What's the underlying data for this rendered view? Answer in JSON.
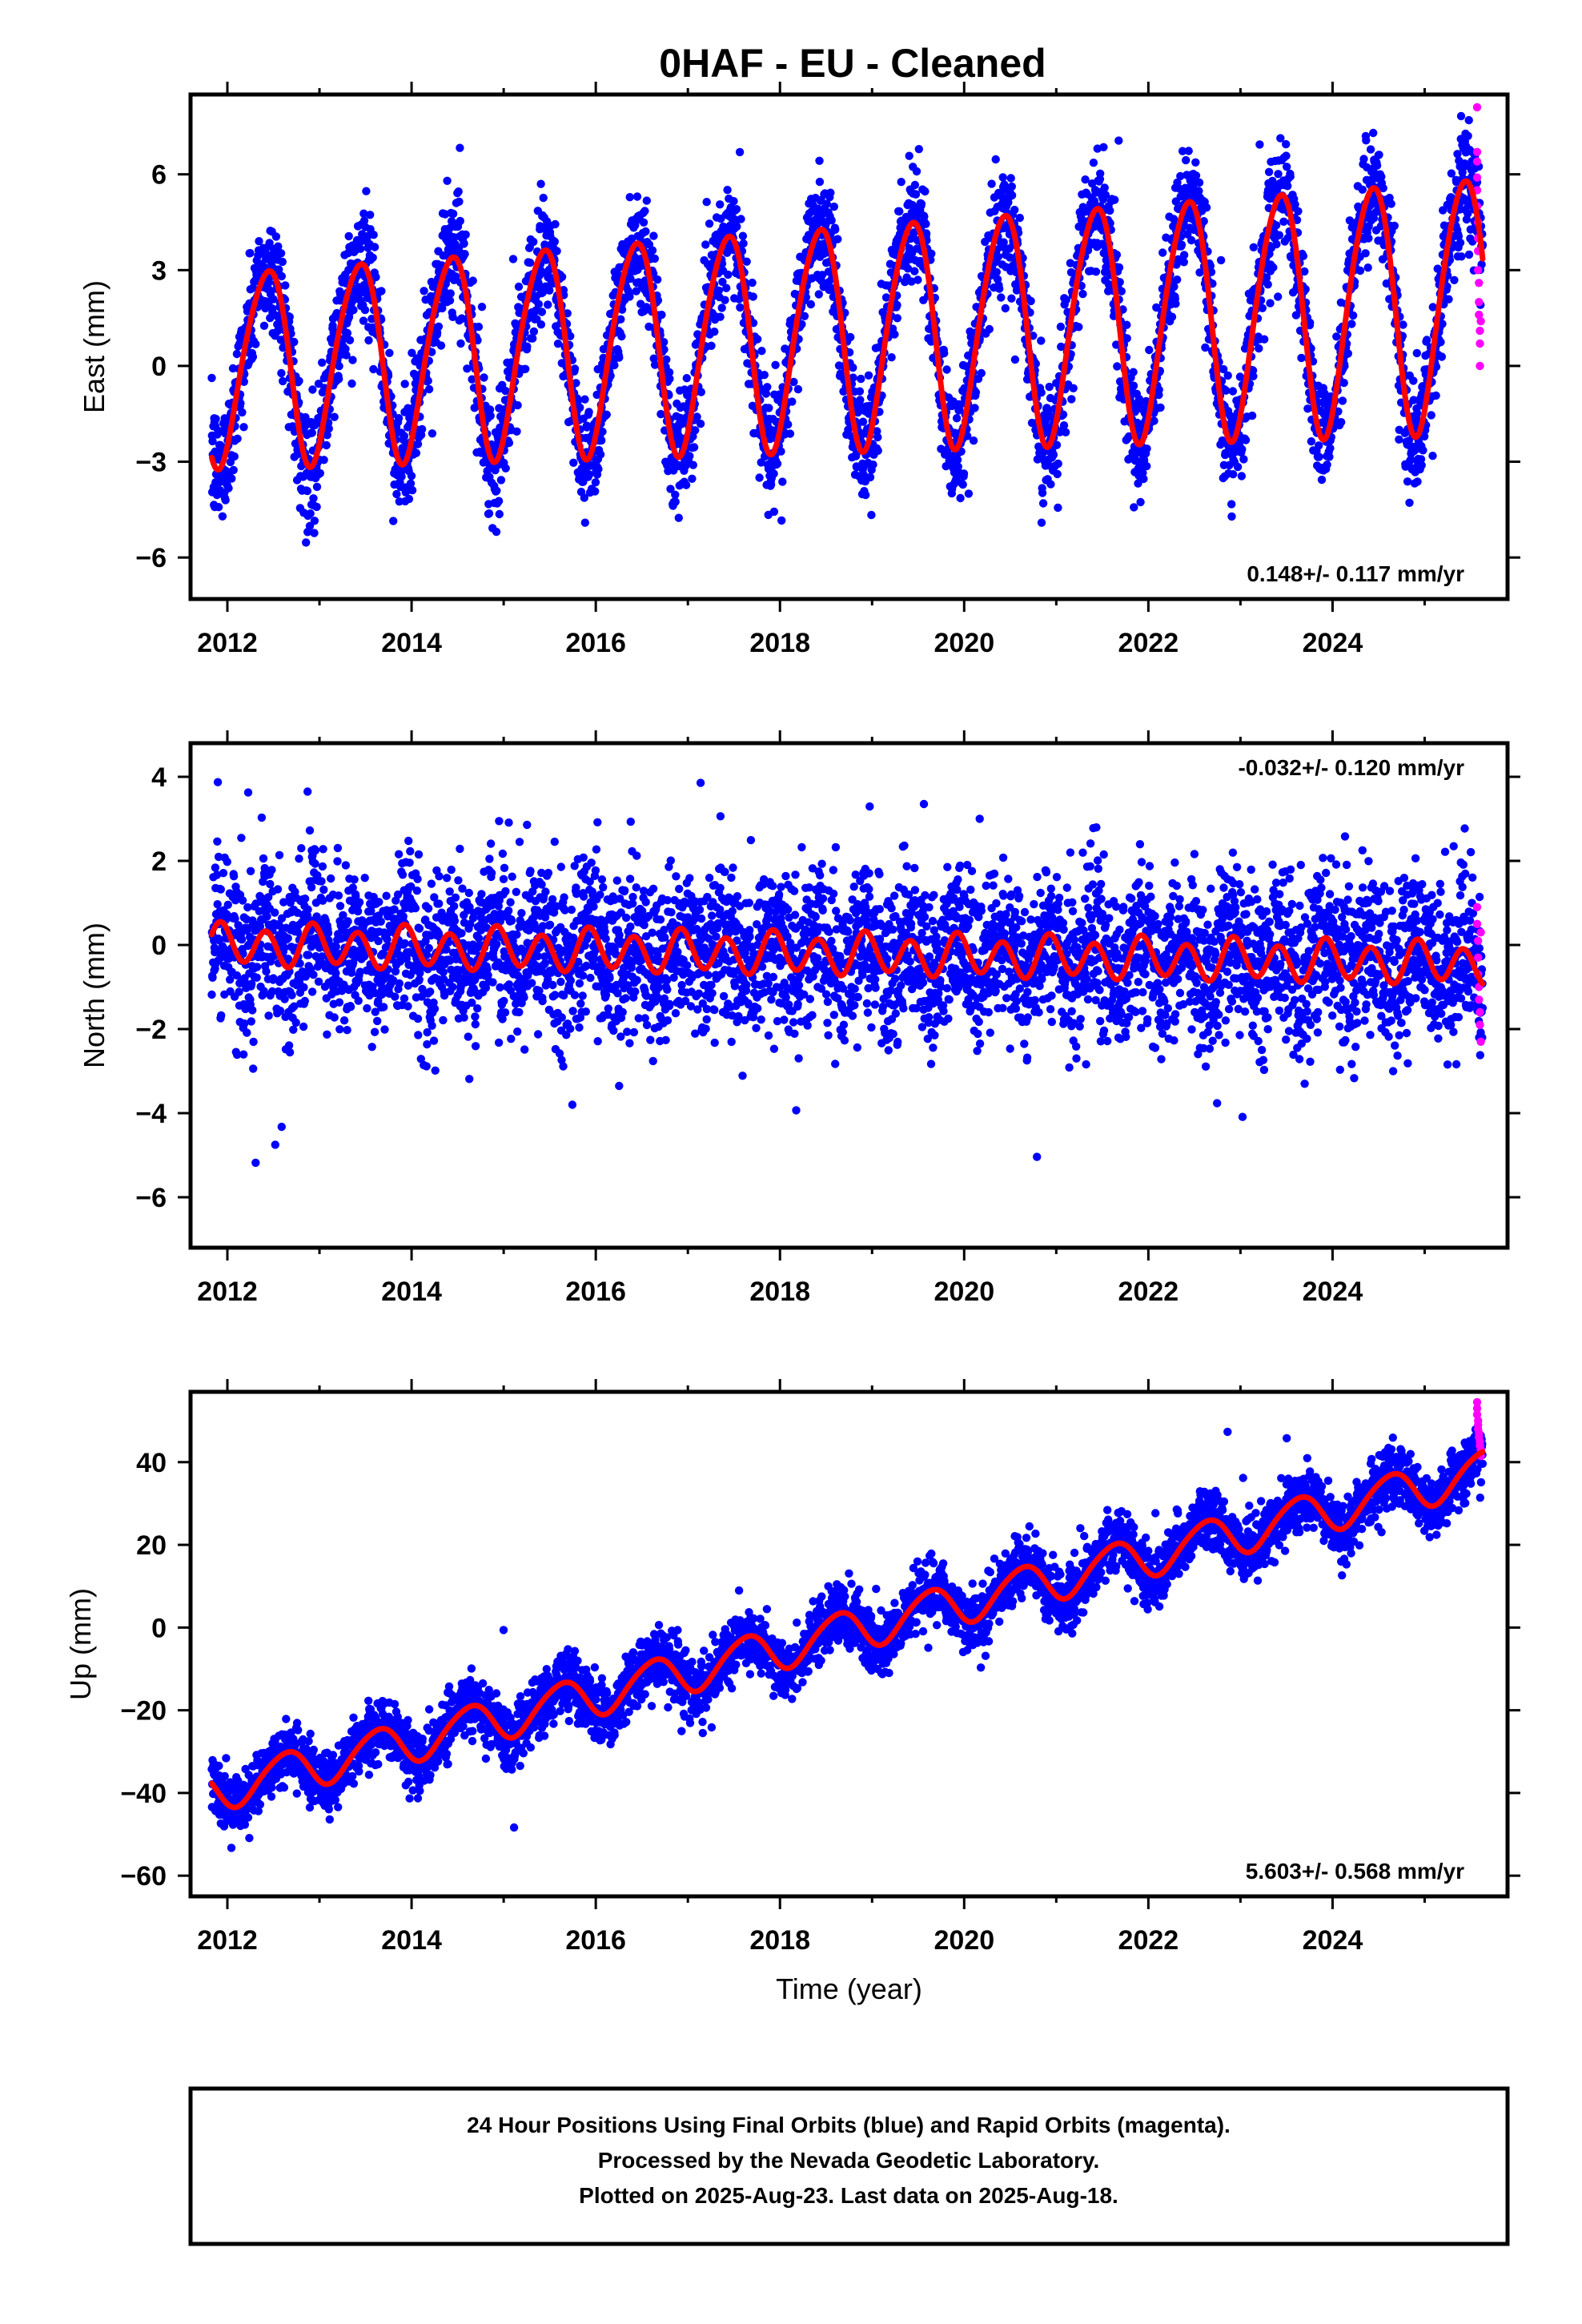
{
  "title": "0HAF  - EU - Cleaned",
  "colors": {
    "final": "#0000ff",
    "rapid": "#ff00ff",
    "model": "#ff0000",
    "frame": "#000000"
  },
  "footer": {
    "line1": "24 Hour Positions Using Final Orbits (blue) and Rapid Orbits (magenta).",
    "line2": "Processed by the Nevada Geodetic Laboratory.",
    "line3": "Plotted on 2025-Aug-23. Last data on 2025-Aug-18."
  },
  "chart_data": [
    {
      "type": "scatter",
      "name": "east",
      "ylabel": "East (mm)",
      "xlabel": "",
      "xlim": [
        2011.6,
        2025.9
      ],
      "ylim": [
        -7.3,
        8.5
      ],
      "xticks": [
        2012,
        2014,
        2016,
        2018,
        2020,
        2022,
        2024
      ],
      "yticks": [
        -6,
        -3,
        0,
        3,
        6
      ],
      "ytick_labels": [
        "−6",
        "−3",
        "0",
        "3",
        "6"
      ],
      "rate": "0.148+/- 0.117 mm/yr",
      "rate_position": "bottom-right",
      "model": {
        "start": 2011.83,
        "end": 2025.63,
        "offset": 0.0,
        "trend_mm_per_yr": 0.148,
        "annual_amp": 3.0,
        "annual_amp_growth": 0.07,
        "annual_phase_peak": 0.42,
        "semiannual_amp": 0.35,
        "semiannual_phase_peak": 0.1,
        "scatter_sd": 0.9,
        "point_count": 4600
      },
      "rapid_points": {
        "x": [
          2025.57,
          2025.57,
          2025.57,
          2025.57,
          2025.57,
          2025.57,
          2025.58,
          2025.58,
          2025.58,
          2025.58,
          2025.59,
          2025.59,
          2025.59,
          2025.6,
          2025.6,
          2025.6,
          2025.61
        ],
        "y": [
          8.1,
          6.7,
          6.4,
          5.9,
          5.5,
          5.0,
          4.5,
          4.0,
          3.6,
          3.0,
          2.6,
          2.0,
          1.6,
          1.1,
          0.7,
          0.0,
          1.4
        ]
      }
    },
    {
      "type": "scatter",
      "name": "north",
      "ylabel": "North (mm)",
      "xlabel": "",
      "xlim": [
        2011.6,
        2025.9
      ],
      "ylim": [
        -7.2,
        4.8
      ],
      "xticks": [
        2012,
        2014,
        2016,
        2018,
        2020,
        2022,
        2024
      ],
      "yticks": [
        -6,
        -4,
        -2,
        0,
        2,
        4
      ],
      "ytick_labels": [
        "−6",
        "−4",
        "−2",
        "0",
        "2",
        "4"
      ],
      "rate": "-0.032+/- 0.120 mm/yr",
      "rate_position": "top-right",
      "model": {
        "start": 2011.83,
        "end": 2025.63,
        "offset": 0.0,
        "trend_mm_per_yr": -0.032,
        "annual_amp": 0.12,
        "annual_amp_growth": 0.0,
        "annual_phase_peak": 0.0,
        "semiannual_amp": 0.45,
        "semiannual_phase_peak": 0.42,
        "scatter_sd": 0.95,
        "point_count": 4600
      },
      "rapid_points": {
        "x": [
          2025.57,
          2025.57,
          2025.58,
          2025.58,
          2025.58,
          2025.59,
          2025.59,
          2025.6,
          2025.6,
          2025.61,
          2025.61
        ],
        "y": [
          0.9,
          0.5,
          0.1,
          -0.3,
          -0.7,
          -1.0,
          -1.3,
          -1.6,
          -1.9,
          -2.3,
          0.3
        ]
      }
    },
    {
      "type": "scatter",
      "name": "up",
      "ylabel": "Up (mm)",
      "xlabel": "Time (year)",
      "xlim": [
        2011.6,
        2025.9
      ],
      "ylim": [
        -65,
        57
      ],
      "xticks": [
        2012,
        2014,
        2016,
        2018,
        2020,
        2022,
        2024
      ],
      "yticks": [
        -60,
        -40,
        -20,
        0,
        20,
        40
      ],
      "ytick_labels": [
        "−60",
        "−40",
        "−20",
        "0",
        "20",
        "40"
      ],
      "rate": "5.603+/- 0.568 mm/yr",
      "rate_position": "bottom-right",
      "model": {
        "start": 2011.83,
        "end": 2025.63,
        "offset": -39.5,
        "trend_mm_per_yr": 5.603,
        "annual_amp": 5.0,
        "annual_amp_growth": 0.0,
        "annual_phase_peak": 0.62,
        "semiannual_amp": 0.6,
        "semiannual_phase_peak": 0.3,
        "scatter_sd": 3.6,
        "point_count": 4600
      },
      "rapid_points": {
        "x": [
          2025.57,
          2025.57,
          2025.57,
          2025.58,
          2025.58,
          2025.58,
          2025.59,
          2025.59,
          2025.6,
          2025.6,
          2025.61,
          2025.61
        ],
        "y": [
          54.5,
          53.0,
          51.5,
          50.0,
          49.0,
          48.0,
          47.0,
          46.0,
          45.0,
          44.0,
          43.0,
          41.5
        ]
      }
    }
  ]
}
